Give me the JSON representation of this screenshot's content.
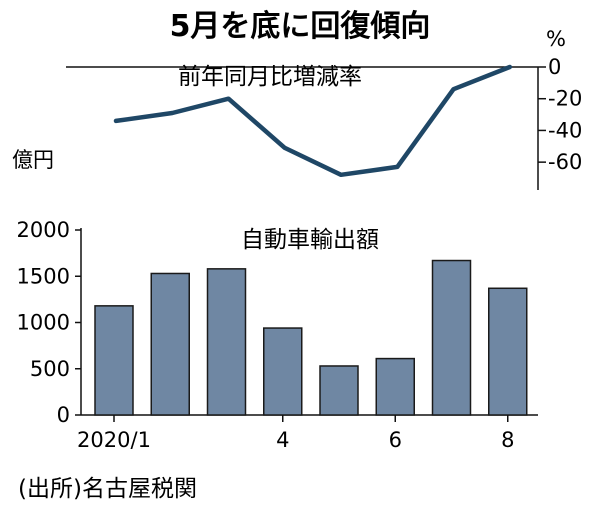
{
  "title": "5月を底に回復傾向",
  "source": "(出所)名古屋税関",
  "chart_data": [
    {
      "type": "line",
      "title": "前年同月比増減率",
      "unit": "%",
      "x": [
        1,
        2,
        3,
        4,
        5,
        6,
        7,
        8
      ],
      "values": [
        -34,
        -29,
        -20,
        -51,
        -68,
        -63,
        -14,
        0
      ],
      "ylim": [
        -70,
        0
      ],
      "yticks": [
        "0",
        "-20",
        "-40",
        "-60"
      ],
      "color": "#1f4766",
      "grid": false
    },
    {
      "type": "bar",
      "title": "自動車輸出額",
      "unit": "億円",
      "categories": [
        "2020/1",
        "2",
        "3",
        "4",
        "5",
        "6",
        "7",
        "8"
      ],
      "values": [
        1180,
        1530,
        1580,
        940,
        530,
        610,
        1670,
        1370
      ],
      "xtick_labels": [
        "2020/1",
        "",
        "",
        "4",
        "",
        "6",
        "",
        "8"
      ],
      "ylim": [
        0,
        2000
      ],
      "yticks": [
        "0",
        "500",
        "1000",
        "1500",
        "2000"
      ],
      "color": "#6f87a3",
      "grid": false
    }
  ]
}
